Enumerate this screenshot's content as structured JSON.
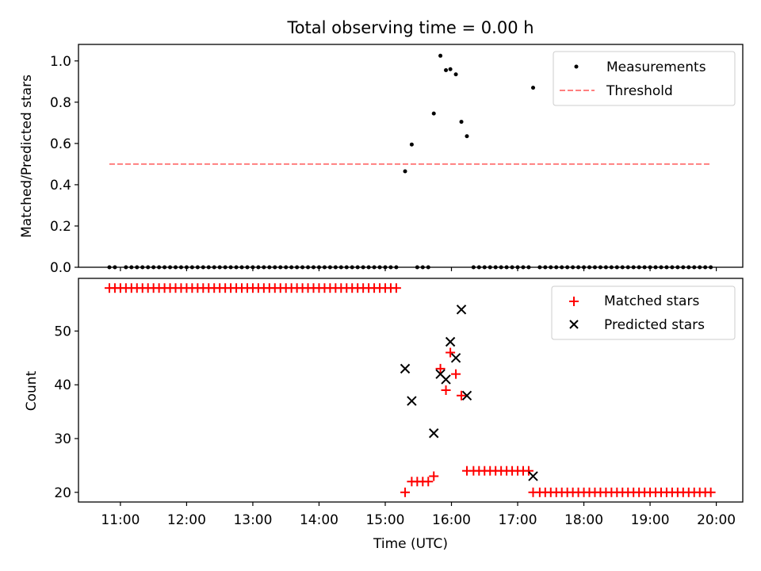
{
  "figure": {
    "title": "Total observing time = 0.00 h",
    "xlabel": "Time (UTC)"
  },
  "chart_data": [
    {
      "type": "scatter",
      "name": "ratio-panel",
      "ylabel": "Matched/Predicted stars",
      "xlim": [
        "10:22",
        "20:24"
      ],
      "ylim": [
        0,
        1.08
      ],
      "yticks": [
        0.0,
        0.2,
        0.4,
        0.6,
        0.8,
        1.0
      ],
      "yticklabels": [
        "0.0",
        "0.2",
        "0.4",
        "0.6",
        "0.8",
        "1.0"
      ],
      "grid": false,
      "legend_position": "top-right",
      "series": [
        {
          "name": "Measurements",
          "marker": "dot",
          "color": "#000000",
          "points": [
            [
              "10:50",
              0
            ],
            [
              "10:55",
              0
            ],
            [
              "11:05",
              0
            ],
            [
              "11:10",
              0
            ],
            [
              "11:15",
              0
            ],
            [
              "11:20",
              0
            ],
            [
              "11:25",
              0
            ],
            [
              "11:30",
              0
            ],
            [
              "11:35",
              0
            ],
            [
              "11:40",
              0
            ],
            [
              "11:45",
              0
            ],
            [
              "11:50",
              0
            ],
            [
              "11:55",
              0
            ],
            [
              "12:00",
              0
            ],
            [
              "12:05",
              0
            ],
            [
              "12:10",
              0
            ],
            [
              "12:15",
              0
            ],
            [
              "12:20",
              0
            ],
            [
              "12:25",
              0
            ],
            [
              "12:30",
              0
            ],
            [
              "12:35",
              0
            ],
            [
              "12:40",
              0
            ],
            [
              "12:45",
              0
            ],
            [
              "12:50",
              0
            ],
            [
              "12:55",
              0
            ],
            [
              "13:00",
              0
            ],
            [
              "13:05",
              0
            ],
            [
              "13:10",
              0
            ],
            [
              "13:15",
              0
            ],
            [
              "13:20",
              0
            ],
            [
              "13:25",
              0
            ],
            [
              "13:30",
              0
            ],
            [
              "13:35",
              0
            ],
            [
              "13:40",
              0
            ],
            [
              "13:45",
              0
            ],
            [
              "13:50",
              0
            ],
            [
              "13:55",
              0
            ],
            [
              "14:00",
              0
            ],
            [
              "14:05",
              0
            ],
            [
              "14:10",
              0
            ],
            [
              "14:15",
              0
            ],
            [
              "14:20",
              0
            ],
            [
              "14:25",
              0
            ],
            [
              "14:30",
              0
            ],
            [
              "14:35",
              0
            ],
            [
              "14:40",
              0
            ],
            [
              "14:45",
              0
            ],
            [
              "14:50",
              0
            ],
            [
              "14:55",
              0
            ],
            [
              "15:00",
              0
            ],
            [
              "15:05",
              0
            ],
            [
              "15:10",
              0
            ],
            [
              "15:18",
              0.465
            ],
            [
              "15:24",
              0.595
            ],
            [
              "15:29",
              0
            ],
            [
              "15:34",
              0
            ],
            [
              "15:39",
              0
            ],
            [
              "15:44",
              0.745
            ],
            [
              "15:50",
              1.025
            ],
            [
              "15:55",
              0.955
            ],
            [
              "15:59",
              0.96
            ],
            [
              "16:04",
              0.935
            ],
            [
              "16:09",
              0.705
            ],
            [
              "16:14",
              0.635
            ],
            [
              "16:20",
              0
            ],
            [
              "16:25",
              0
            ],
            [
              "16:30",
              0
            ],
            [
              "16:35",
              0
            ],
            [
              "16:40",
              0
            ],
            [
              "16:45",
              0
            ],
            [
              "16:50",
              0
            ],
            [
              "16:55",
              0
            ],
            [
              "17:00",
              0
            ],
            [
              "17:05",
              0
            ],
            [
              "17:10",
              0
            ],
            [
              "17:14",
              0.87
            ],
            [
              "17:20",
              0
            ],
            [
              "17:25",
              0
            ],
            [
              "17:30",
              0
            ],
            [
              "17:35",
              0
            ],
            [
              "17:40",
              0
            ],
            [
              "17:45",
              0
            ],
            [
              "17:50",
              0
            ],
            [
              "17:55",
              0
            ],
            [
              "18:00",
              0
            ],
            [
              "18:05",
              0
            ],
            [
              "18:10",
              0
            ],
            [
              "18:15",
              0
            ],
            [
              "18:20",
              0
            ],
            [
              "18:25",
              0
            ],
            [
              "18:30",
              0
            ],
            [
              "18:35",
              0
            ],
            [
              "18:40",
              0
            ],
            [
              "18:45",
              0
            ],
            [
              "18:50",
              0
            ],
            [
              "18:55",
              0
            ],
            [
              "19:00",
              0
            ],
            [
              "19:05",
              0
            ],
            [
              "19:10",
              0
            ],
            [
              "19:15",
              0
            ],
            [
              "19:20",
              0
            ],
            [
              "19:25",
              0
            ],
            [
              "19:30",
              0
            ],
            [
              "19:35",
              0
            ],
            [
              "19:40",
              0
            ],
            [
              "19:45",
              0
            ],
            [
              "19:50",
              0
            ],
            [
              "19:55",
              0
            ]
          ]
        },
        {
          "name": "Threshold",
          "marker": "dashed-line",
          "color": "#ff7f7f",
          "points": [
            [
              "10:50",
              0.5
            ],
            [
              "19:55",
              0.5
            ]
          ]
        }
      ]
    },
    {
      "type": "scatter",
      "name": "count-panel",
      "ylabel": "Count",
      "xlim": [
        "10:22",
        "20:24"
      ],
      "ylim": [
        18.2,
        59.8
      ],
      "yticks": [
        20,
        30,
        40,
        50
      ],
      "yticklabels": [
        "20",
        "30",
        "40",
        "50"
      ],
      "xticks": [
        "11:00",
        "12:00",
        "13:00",
        "14:00",
        "15:00",
        "16:00",
        "17:00",
        "18:00",
        "19:00",
        "20:00"
      ],
      "xticklabels": [
        "11:00",
        "12:00",
        "13:00",
        "14:00",
        "15:00",
        "16:00",
        "17:00",
        "18:00",
        "19:00",
        "20:00"
      ],
      "grid": false,
      "legend_position": "top-right",
      "series": [
        {
          "name": "Matched stars",
          "marker": "plus",
          "color": "#ff0000",
          "points": [
            [
              "10:50",
              58
            ],
            [
              "10:55",
              58
            ],
            [
              "11:00",
              58
            ],
            [
              "11:05",
              58
            ],
            [
              "11:10",
              58
            ],
            [
              "11:15",
              58
            ],
            [
              "11:20",
              58
            ],
            [
              "11:25",
              58
            ],
            [
              "11:30",
              58
            ],
            [
              "11:35",
              58
            ],
            [
              "11:40",
              58
            ],
            [
              "11:45",
              58
            ],
            [
              "11:50",
              58
            ],
            [
              "11:55",
              58
            ],
            [
              "12:00",
              58
            ],
            [
              "12:05",
              58
            ],
            [
              "12:10",
              58
            ],
            [
              "12:15",
              58
            ],
            [
              "12:20",
              58
            ],
            [
              "12:25",
              58
            ],
            [
              "12:30",
              58
            ],
            [
              "12:35",
              58
            ],
            [
              "12:40",
              58
            ],
            [
              "12:45",
              58
            ],
            [
              "12:50",
              58
            ],
            [
              "12:55",
              58
            ],
            [
              "13:00",
              58
            ],
            [
              "13:05",
              58
            ],
            [
              "13:10",
              58
            ],
            [
              "13:15",
              58
            ],
            [
              "13:20",
              58
            ],
            [
              "13:25",
              58
            ],
            [
              "13:30",
              58
            ],
            [
              "13:35",
              58
            ],
            [
              "13:40",
              58
            ],
            [
              "13:45",
              58
            ],
            [
              "13:50",
              58
            ],
            [
              "13:55",
              58
            ],
            [
              "14:00",
              58
            ],
            [
              "14:05",
              58
            ],
            [
              "14:10",
              58
            ],
            [
              "14:15",
              58
            ],
            [
              "14:20",
              58
            ],
            [
              "14:25",
              58
            ],
            [
              "14:30",
              58
            ],
            [
              "14:35",
              58
            ],
            [
              "14:40",
              58
            ],
            [
              "14:45",
              58
            ],
            [
              "14:50",
              58
            ],
            [
              "14:55",
              58
            ],
            [
              "15:00",
              58
            ],
            [
              "15:05",
              58
            ],
            [
              "15:10",
              58
            ],
            [
              "15:18",
              20
            ],
            [
              "15:24",
              22
            ],
            [
              "15:29",
              22
            ],
            [
              "15:34",
              22
            ],
            [
              "15:39",
              22
            ],
            [
              "15:44",
              23
            ],
            [
              "15:50",
              43
            ],
            [
              "15:55",
              39
            ],
            [
              "15:59",
              46
            ],
            [
              "16:04",
              42
            ],
            [
              "16:09",
              38
            ],
            [
              "16:14",
              24
            ],
            [
              "16:20",
              24
            ],
            [
              "16:25",
              24
            ],
            [
              "16:30",
              24
            ],
            [
              "16:35",
              24
            ],
            [
              "16:40",
              24
            ],
            [
              "16:45",
              24
            ],
            [
              "16:50",
              24
            ],
            [
              "16:55",
              24
            ],
            [
              "17:00",
              24
            ],
            [
              "17:05",
              24
            ],
            [
              "17:10",
              24
            ],
            [
              "17:14",
              20
            ],
            [
              "17:20",
              20
            ],
            [
              "17:25",
              20
            ],
            [
              "17:30",
              20
            ],
            [
              "17:35",
              20
            ],
            [
              "17:40",
              20
            ],
            [
              "17:45",
              20
            ],
            [
              "17:50",
              20
            ],
            [
              "17:55",
              20
            ],
            [
              "18:00",
              20
            ],
            [
              "18:05",
              20
            ],
            [
              "18:10",
              20
            ],
            [
              "18:15",
              20
            ],
            [
              "18:20",
              20
            ],
            [
              "18:25",
              20
            ],
            [
              "18:30",
              20
            ],
            [
              "18:35",
              20
            ],
            [
              "18:40",
              20
            ],
            [
              "18:45",
              20
            ],
            [
              "18:50",
              20
            ],
            [
              "18:55",
              20
            ],
            [
              "19:00",
              20
            ],
            [
              "19:05",
              20
            ],
            [
              "19:10",
              20
            ],
            [
              "19:15",
              20
            ],
            [
              "19:20",
              20
            ],
            [
              "19:25",
              20
            ],
            [
              "19:30",
              20
            ],
            [
              "19:35",
              20
            ],
            [
              "19:40",
              20
            ],
            [
              "19:45",
              20
            ],
            [
              "19:50",
              20
            ],
            [
              "19:55",
              20
            ]
          ]
        },
        {
          "name": "Predicted stars",
          "marker": "x",
          "color": "#000000",
          "points": [
            [
              "15:18",
              43
            ],
            [
              "15:24",
              37
            ],
            [
              "15:44",
              31
            ],
            [
              "15:50",
              42
            ],
            [
              "15:55",
              41
            ],
            [
              "15:59",
              48
            ],
            [
              "16:04",
              45
            ],
            [
              "16:09",
              54
            ],
            [
              "16:14",
              38
            ],
            [
              "17:14",
              23
            ]
          ]
        }
      ]
    }
  ]
}
